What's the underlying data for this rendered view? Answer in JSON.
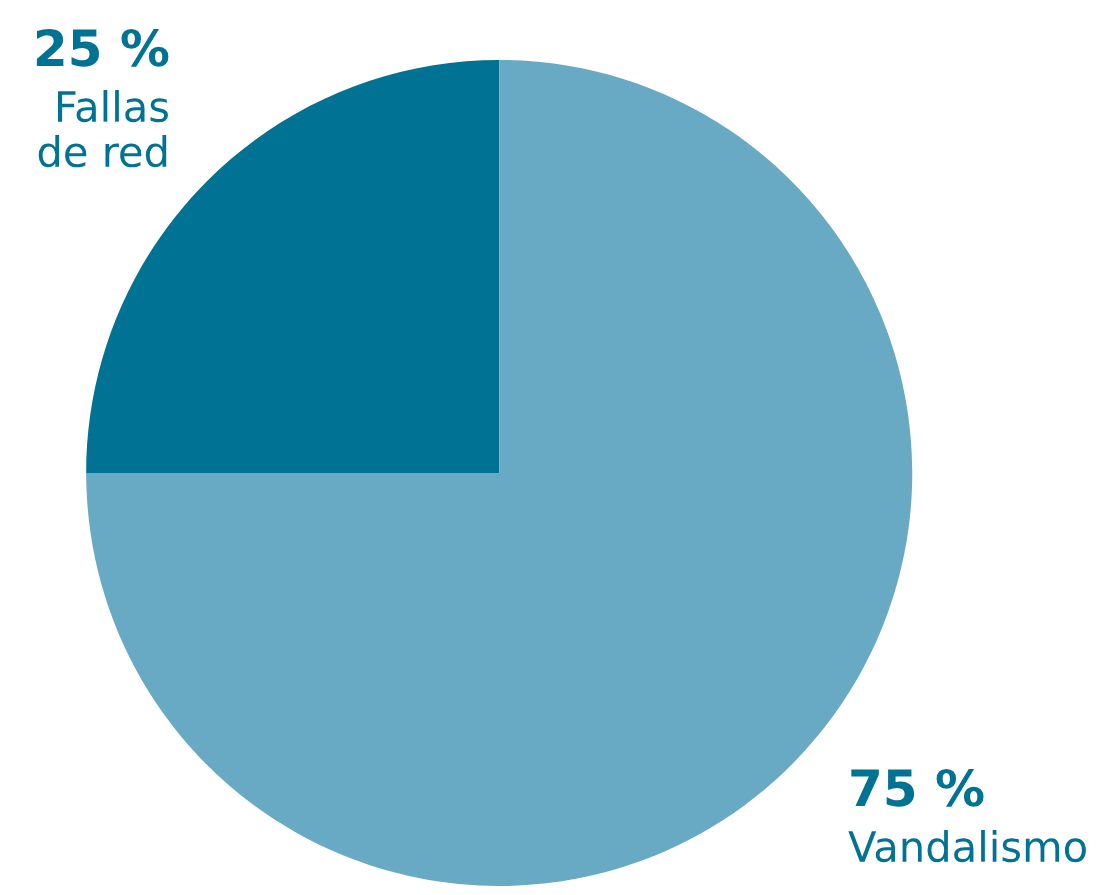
{
  "chart_data": {
    "type": "pie",
    "categories": [
      "Fallas\nde red",
      "Vandalismo"
    ],
    "values": [
      25,
      75
    ],
    "value_labels": [
      "25 %",
      "75 %"
    ],
    "colors": [
      "#007294",
      "#68aac3"
    ],
    "legend": false
  }
}
